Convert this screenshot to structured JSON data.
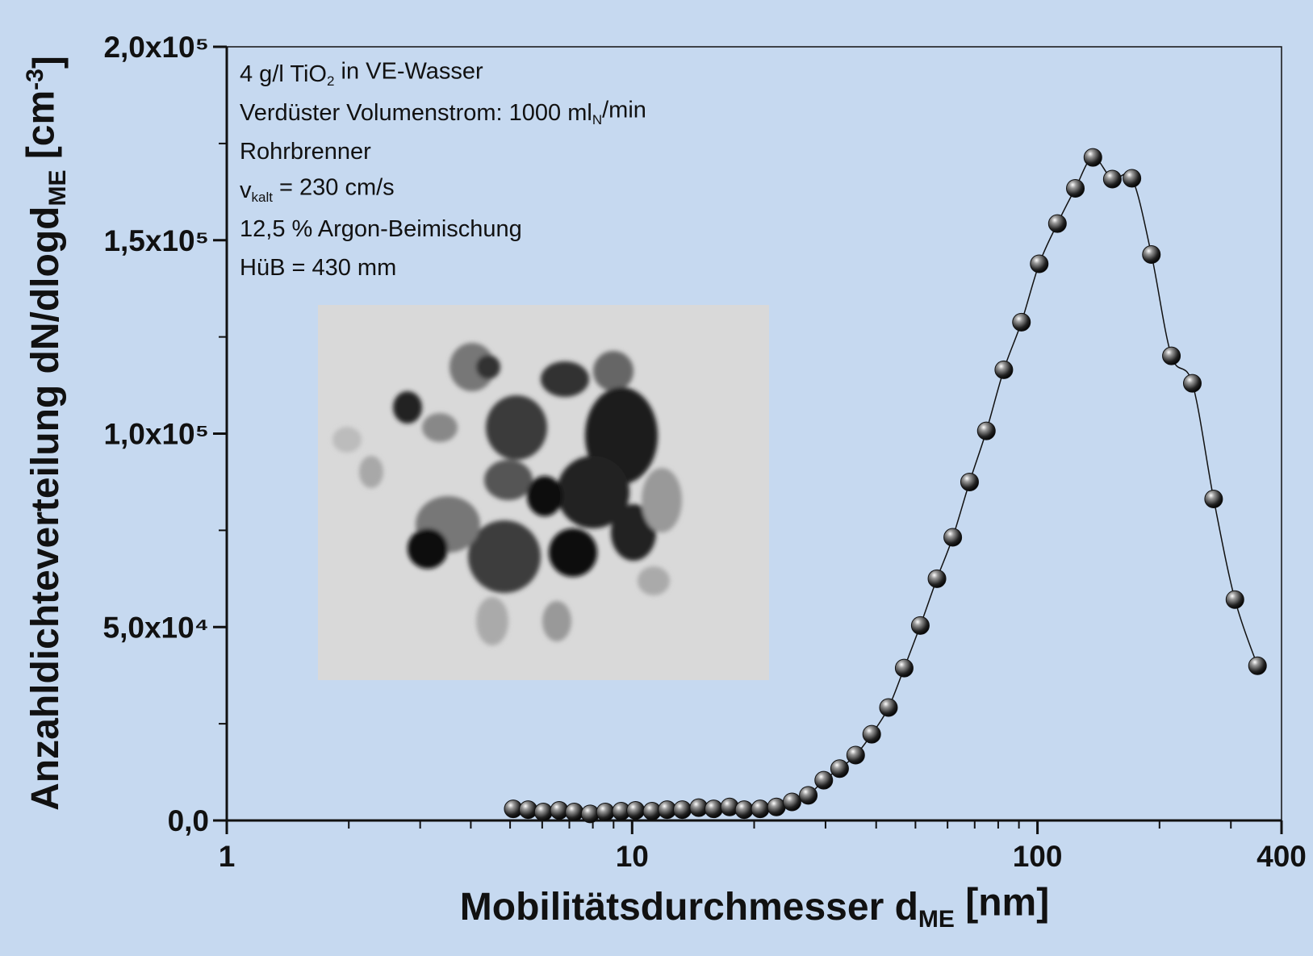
{
  "chart_data": {
    "type": "scatter",
    "xlabel": [
      {
        "text": "Mobilitätsdurchmesser d"
      },
      {
        "sub": "ME"
      },
      {
        "text": " [nm]"
      }
    ],
    "ylabel": [
      {
        "text": "Anzahldichteverteilung dN/dlogd"
      },
      {
        "sub": "ME"
      },
      {
        "text": " [cm"
      },
      {
        "sup": "-3"
      },
      {
        "text": "]"
      }
    ],
    "annotations": [
      [
        {
          "text": "4 g/l TiO"
        },
        {
          "sub": "2"
        },
        {
          "text": " in VE-Wasser"
        }
      ],
      [
        {
          "text": "Verdüster Volumenstrom: 1000 ml"
        },
        {
          "sub": "N"
        },
        {
          "text": "/min"
        }
      ],
      [
        {
          "text": "Rohrbrenner"
        }
      ],
      [
        {
          "text": "v"
        },
        {
          "sub": "kalt"
        },
        {
          "text": " = 230 cm/s"
        }
      ],
      [
        {
          "text": "12,5 % Argon-Beimischung"
        }
      ],
      [
        {
          "text": "HüB = 430 mm"
        }
      ]
    ],
    "x": [
      5.09,
      5.54,
      6.04,
      6.61,
      7.2,
      7.88,
      8.59,
      9.4,
      10.2,
      11.2,
      12.2,
      13.3,
      14.6,
      15.9,
      17.4,
      18.9,
      20.7,
      22.7,
      24.8,
      27.2,
      29.7,
      32.5,
      35.6,
      39.0,
      42.9,
      46.9,
      51.4,
      56.5,
      61.8,
      68.0,
      74.8,
      82.6,
      91.3,
      101,
      112,
      124,
      137,
      153,
      171,
      191,
      214,
      241,
      272,
      307,
      349
    ],
    "values": [
      3000,
      2800,
      2200,
      2600,
      2200,
      1700,
      2200,
      2400,
      2600,
      2400,
      2800,
      2800,
      3300,
      3000,
      3500,
      2800,
      3000,
      3500,
      4800,
      6500,
      10400,
      13400,
      16900,
      22300,
      29200,
      39400,
      50400,
      62500,
      73200,
      87500,
      100700,
      116500,
      128800,
      143900,
      154300,
      163400,
      171400,
      165800,
      166000,
      146300,
      120100,
      113000,
      83100,
      57100,
      40000
    ],
    "color": "#111111",
    "log_x": true,
    "xlim": [
      1,
      400
    ],
    "xticks": [
      1,
      10,
      100,
      400
    ],
    "xticks_minor": [
      2,
      3,
      4,
      5,
      6,
      7,
      8,
      9,
      20,
      30,
      40,
      50,
      60,
      70,
      80,
      90,
      200,
      300
    ],
    "ylim": [
      0,
      200000
    ],
    "yticks": [
      {
        "value": 0,
        "label": "0,0"
      },
      {
        "value": 50000,
        "label": "5,0x10⁴"
      },
      {
        "value": 100000,
        "label": "1,0x10⁵"
      },
      {
        "value": 150000,
        "label": "1,5x10⁵"
      },
      {
        "value": 200000,
        "label": "2,0x10⁵"
      }
    ],
    "yticks_minor": [
      25000,
      75000,
      125000,
      175000
    ]
  }
}
